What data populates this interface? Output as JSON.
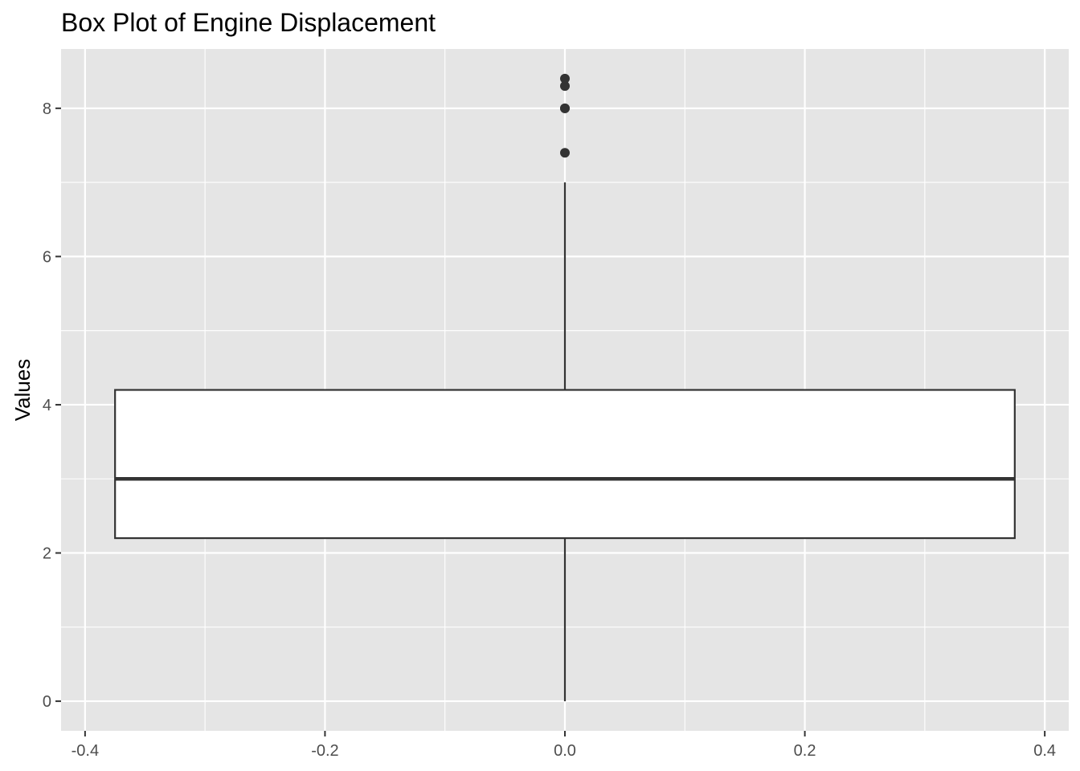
{
  "chart_data": {
    "type": "box",
    "title": "Box Plot of Engine Displacement",
    "xlabel": "",
    "ylabel": "Values",
    "xlim": [
      -0.42,
      0.42
    ],
    "ylim": [
      -0.4,
      8.8
    ],
    "x_ticks": [
      {
        "value": -0.4,
        "label": "-0.4"
      },
      {
        "value": -0.2,
        "label": "-0.2"
      },
      {
        "value": 0.0,
        "label": "0.0"
      },
      {
        "value": 0.2,
        "label": "0.2"
      },
      {
        "value": 0.4,
        "label": "0.4"
      }
    ],
    "x_minor": [
      -0.3,
      -0.1,
      0.1,
      0.3
    ],
    "y_ticks": [
      {
        "value": 0,
        "label": "0"
      },
      {
        "value": 2,
        "label": "2"
      },
      {
        "value": 4,
        "label": "4"
      },
      {
        "value": 6,
        "label": "6"
      },
      {
        "value": 8,
        "label": "8"
      }
    ],
    "y_minor": [
      1,
      3,
      5,
      7
    ],
    "grid": true,
    "box": {
      "x": 0.0,
      "x_min": -0.375,
      "x_max": 0.375,
      "min": 0.0,
      "q1": 2.2,
      "median": 3.0,
      "q3": 4.2,
      "max": 7.0,
      "outliers": [
        7.4,
        8.0,
        8.0,
        8.3,
        8.4
      ]
    },
    "colors": {
      "panel": "#e5e5e5",
      "grid": "#ffffff",
      "box_fill": "#ffffff",
      "box_stroke": "#333333",
      "outlier": "#333333"
    }
  }
}
